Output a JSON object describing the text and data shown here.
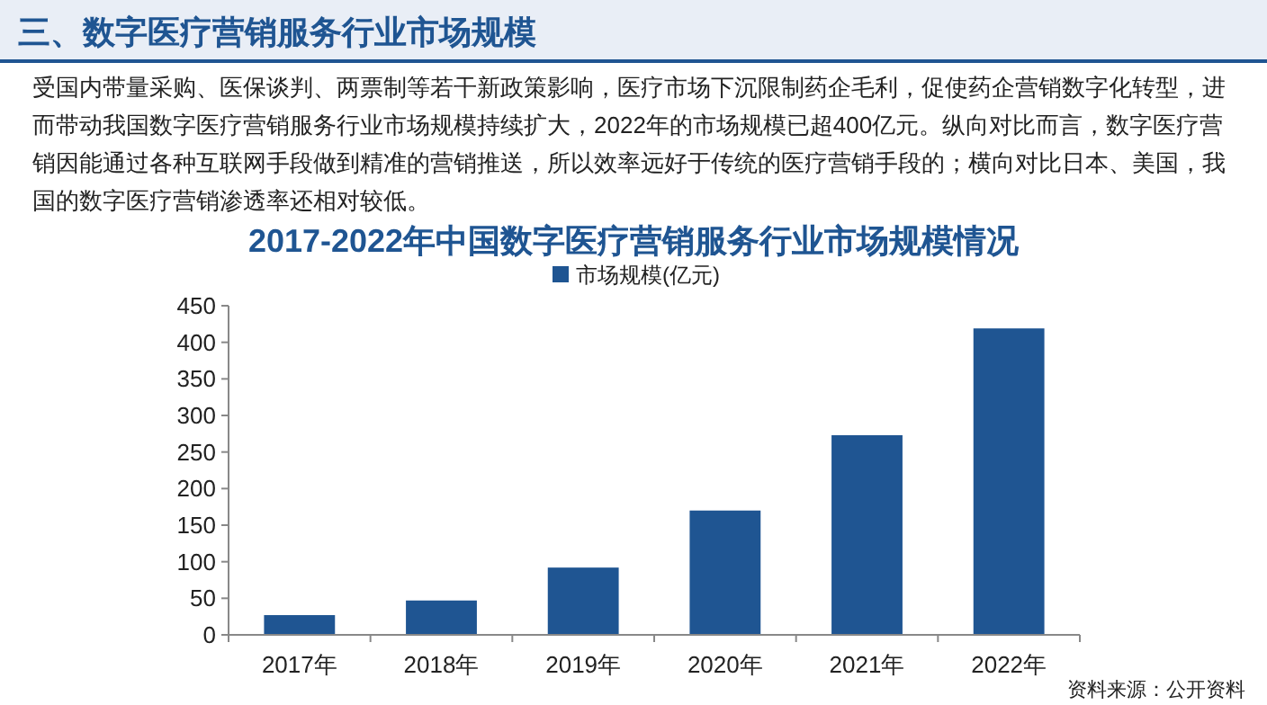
{
  "chart_data": {
    "type": "bar",
    "title": "2017-2022年中国数字医疗营销服务行业市场规模情况",
    "annotations": [
      "三、数字医疗营销服务行业市场规模",
      "受国内带量采购、医保谈判、两票制等若干新政策影响，医疗市场下沉限制药企毛利，促使药企营销数字化转型，进而带动我国数字医疗营销服务行业市场规模持续扩大，2022年的市场规模已超400亿元。纵向对比而言，数字医疗营销因能通过各种互联网手段做到精准的营销推送，所以效率远好于传统的医疗营销手段的；横向对比日本、美国，我国的数字医疗营销渗透率还相对较低。",
      "资料来源：公开资料"
    ],
    "categories": [
      "2017年",
      "2018年",
      "2019年",
      "2020年",
      "2021年",
      "2022年"
    ],
    "series": [
      {
        "name": "市场规模(亿元)",
        "color": "#1f5592",
        "values": [
          27,
          47,
          92,
          170,
          273,
          419
        ]
      }
    ],
    "ylim": [
      0,
      450
    ],
    "yticks": [
      0,
      50,
      100,
      150,
      200,
      250,
      300,
      350,
      400,
      450
    ],
    "legend": "top",
    "grid": false
  }
}
